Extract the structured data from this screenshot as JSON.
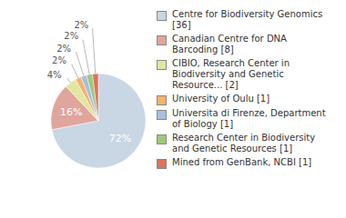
{
  "chart_data": {
    "type": "pie",
    "categories": [
      "Centre for Biodiversity Genomics [36]",
      "Canadian Centre for DNA Barcoding [8]",
      "CIBIO, Research Center in Biodiversity and Genetic Resource... [2]",
      "University of Oulu [1]",
      "Universita di Firenze, Department of Biology [1]",
      "Research Center in Biodiversity and Genetic Resources [1]",
      "Mined from GenBank, NCBI [1]"
    ],
    "values": [
      72,
      16,
      4,
      2,
      2,
      2,
      2
    ],
    "value_labels": [
      "72%",
      "16%",
      "4%",
      "2%",
      "2%",
      "2%",
      "2%"
    ],
    "data_labels": true,
    "colors": [
      "#c9d6e4",
      "#e0a59d",
      "#e1e7a2",
      "#f3b36d",
      "#aabee0",
      "#9fc87f",
      "#d9755c"
    ],
    "legend": "right"
  }
}
